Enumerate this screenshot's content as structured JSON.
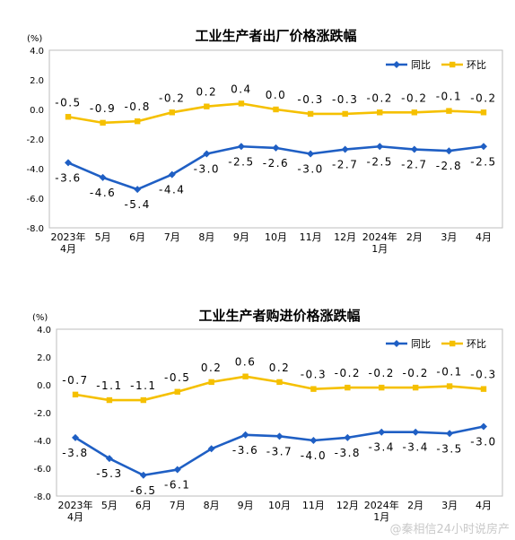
{
  "chart_data": [
    {
      "type": "line",
      "title": "工业生产者出厂价格涨跌幅",
      "unit_label": "(%)",
      "ylim": [
        -8.0,
        4.0
      ],
      "yticks": [
        4.0,
        2.0,
        0.0,
        -2.0,
        -4.0,
        -6.0,
        -8.0
      ],
      "ytick_labels": [
        "4.0",
        "2.0",
        "0.0",
        "-2.0",
        "-4.0",
        "-6.0",
        "-8.0"
      ],
      "categories": [
        [
          "2023年",
          "4月"
        ],
        [
          "5月"
        ],
        [
          "6月"
        ],
        [
          "7月"
        ],
        [
          "8月"
        ],
        [
          "9月"
        ],
        [
          "10月"
        ],
        [
          "11月"
        ],
        [
          "12月"
        ],
        [
          "2024年",
          "1月"
        ],
        [
          "2月"
        ],
        [
          "3月"
        ],
        [
          "4月"
        ]
      ],
      "legend_position": "top-right",
      "grid": false,
      "series": [
        {
          "name": "同比",
          "color": "#1f5fc4",
          "values": [
            -3.6,
            -4.6,
            -5.4,
            -4.4,
            -3.0,
            -2.5,
            -2.6,
            -3.0,
            -2.7,
            -2.5,
            -2.7,
            -2.8,
            -2.5
          ],
          "labels": [
            "-3.6",
            "-4.6",
            "-5.4",
            "-4.4",
            "-3.0",
            "-2.5",
            "-2.6",
            "-3.0",
            "-2.7",
            "-2.5",
            "-2.7",
            "-2.8",
            "-2.5"
          ]
        },
        {
          "name": "环比",
          "color": "#f5c000",
          "values": [
            -0.5,
            -0.9,
            -0.8,
            -0.2,
            0.2,
            0.4,
            0.0,
            -0.3,
            -0.3,
            -0.2,
            -0.2,
            -0.1,
            -0.2
          ],
          "labels": [
            "-0.5",
            "-0.9",
            "-0.8",
            "-0.2",
            "0.2",
            "0.4",
            "0.0",
            "-0.3",
            "-0.3",
            "-0.2",
            "-0.2",
            "-0.1",
            "-0.2"
          ]
        }
      ]
    },
    {
      "type": "line",
      "title": "工业生产者购进价格涨跌幅",
      "unit_label": "(%)",
      "ylim": [
        -8.0,
        4.0
      ],
      "yticks": [
        4.0,
        2.0,
        0.0,
        -2.0,
        -4.0,
        -6.0,
        -8.0
      ],
      "ytick_labels": [
        "4.0",
        "2.0",
        "0.0",
        "-2.0",
        "-4.0",
        "-6.0",
        "-8.0"
      ],
      "categories": [
        [
          "2023年",
          "4月"
        ],
        [
          "5月"
        ],
        [
          "6月"
        ],
        [
          "7月"
        ],
        [
          "8月"
        ],
        [
          "9月"
        ],
        [
          "10月"
        ],
        [
          "11月"
        ],
        [
          "12月"
        ],
        [
          "2024年",
          "1月"
        ],
        [
          "2月"
        ],
        [
          "3月"
        ],
        [
          "4月"
        ]
      ],
      "legend_position": "top-right",
      "grid": false,
      "series": [
        {
          "name": "同比",
          "color": "#1f5fc4",
          "values": [
            -3.8,
            -5.3,
            -6.5,
            -6.1,
            -4.6,
            -3.6,
            -3.7,
            -4.0,
            -3.8,
            -3.4,
            -3.4,
            -3.5,
            -3.0
          ],
          "labels": [
            "-3.8",
            "-5.3",
            "-6.5",
            "-6.1",
            "",
            "-3.6",
            "-3.7",
            "-4.0",
            "-3.8",
            "-3.4",
            "-3.4",
            "-3.5",
            "-3.0"
          ]
        },
        {
          "name": "环比",
          "color": "#f5c000",
          "values": [
            -0.7,
            -1.1,
            -1.1,
            -0.5,
            0.2,
            0.6,
            0.2,
            -0.3,
            -0.2,
            -0.2,
            -0.2,
            -0.1,
            -0.3
          ],
          "labels": [
            "-0.7",
            "-1.1",
            "-1.1",
            "-0.5",
            "0.2",
            "0.6",
            "0.2",
            "-0.3",
            "-0.2",
            "-0.2",
            "-0.2",
            "-0.1",
            "-0.3"
          ]
        }
      ]
    }
  ],
  "watermark": "@秦相信24小时说房产"
}
